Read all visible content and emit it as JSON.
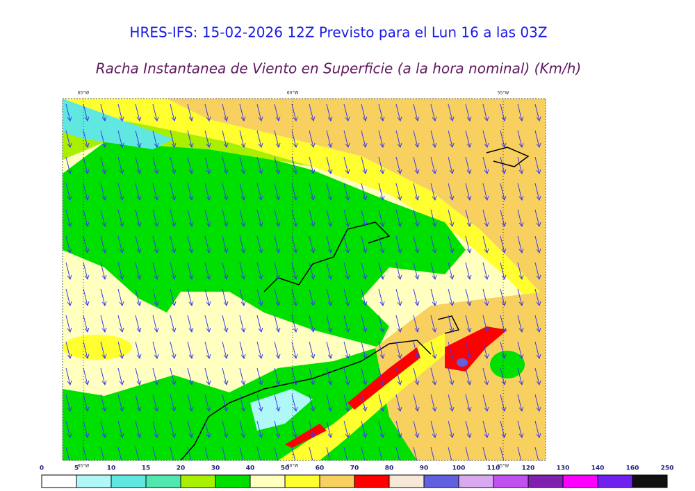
{
  "header": {
    "title": "HRES-IFS: 15-02-2026 12Z Previsto para el Lun 16 a las 03Z",
    "subtitle": "Racha Instantanea de Viento en Superficie (a la hora nominal) (Km/h)"
  },
  "map": {
    "meridians": [
      "65°W",
      "60°W",
      "55°W"
    ]
  },
  "colorbar": {
    "levels": [
      0,
      5,
      10,
      15,
      20,
      30,
      40,
      50,
      60,
      70,
      80,
      90,
      100,
      110,
      120,
      130,
      140,
      160,
      250
    ],
    "colors": [
      "#ffffff",
      "#b0f8f8",
      "#60e8e0",
      "#50e8b0",
      "#a8f000",
      "#00e000",
      "#ffffc0",
      "#ffff30",
      "#f8d060",
      "#ff0000",
      "#f8e8d8",
      "#6060e0",
      "#d8a8f0",
      "#c050f0",
      "#8020b0",
      "#ff00ff",
      "#7020f0",
      "#101010"
    ]
  }
}
